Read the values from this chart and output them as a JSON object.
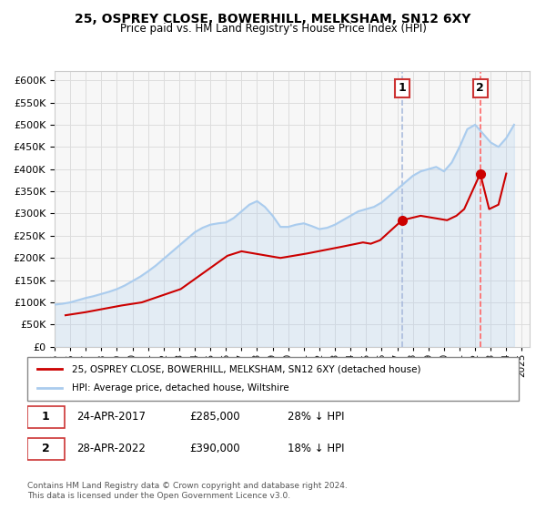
{
  "title": "25, OSPREY CLOSE, BOWERHILL, MELKSHAM, SN12 6XY",
  "subtitle": "Price paid vs. HM Land Registry's House Price Index (HPI)",
  "legend_label_red": "25, OSPREY CLOSE, BOWERHILL, MELKSHAM, SN12 6XY (detached house)",
  "legend_label_blue": "HPI: Average price, detached house, Wiltshire",
  "annotation1_label": "1",
  "annotation1_date": "24-APR-2017",
  "annotation1_price": "£285,000",
  "annotation1_hpi": "28% ↓ HPI",
  "annotation1_year": 2017.31,
  "annotation1_value": 285000,
  "annotation2_label": "2",
  "annotation2_date": "28-APR-2022",
  "annotation2_price": "£390,000",
  "annotation2_hpi": "18% ↓ HPI",
  "annotation2_year": 2022.33,
  "annotation2_value": 390000,
  "vline1_year": 2017.31,
  "vline2_year": 2022.33,
  "footer1": "Contains HM Land Registry data © Crown copyright and database right 2024.",
  "footer2": "This data is licensed under the Open Government Licence v3.0.",
  "ylim": [
    0,
    620000
  ],
  "xlim_min": 1995.0,
  "xlim_max": 2025.5,
  "red_color": "#cc0000",
  "blue_color": "#aaccee",
  "vline_blue_color": "#aabbdd",
  "vline_red_color": "#ff6666",
  "grid_color": "#dddddd",
  "bg_color": "#f7f7f7",
  "hpi_years": [
    1995,
    1995.5,
    1996,
    1996.5,
    1997,
    1997.5,
    1998,
    1998.5,
    1999,
    1999.5,
    2000,
    2000.5,
    2001,
    2001.5,
    2002,
    2002.5,
    2003,
    2003.5,
    2004,
    2004.5,
    2005,
    2005.5,
    2006,
    2006.5,
    2007,
    2007.5,
    2008,
    2008.5,
    2009,
    2009.5,
    2010,
    2010.5,
    2011,
    2011.5,
    2012,
    2012.5,
    2013,
    2013.5,
    2014,
    2014.5,
    2015,
    2015.5,
    2016,
    2016.5,
    2017,
    2017.5,
    2018,
    2018.5,
    2019,
    2019.5,
    2020,
    2020.5,
    2021,
    2021.5,
    2022,
    2022.5,
    2023,
    2023.5,
    2024,
    2024.5
  ],
  "hpi_values": [
    95000,
    97000,
    100000,
    105000,
    110000,
    114000,
    119000,
    124000,
    130000,
    138000,
    148000,
    158000,
    170000,
    183000,
    198000,
    213000,
    228000,
    243000,
    258000,
    268000,
    275000,
    278000,
    280000,
    290000,
    305000,
    320000,
    328000,
    315000,
    295000,
    270000,
    270000,
    275000,
    278000,
    272000,
    265000,
    268000,
    275000,
    285000,
    295000,
    305000,
    310000,
    315000,
    325000,
    340000,
    355000,
    370000,
    385000,
    395000,
    400000,
    405000,
    395000,
    415000,
    450000,
    490000,
    500000,
    480000,
    460000,
    450000,
    470000,
    500000
  ],
  "price_years": [
    1995.7,
    1997.0,
    1999.3,
    2000.6,
    2003.1,
    2006.1,
    2007.0,
    2009.5,
    2011.2,
    2013.4,
    2014.8,
    2015.3,
    2015.9,
    2017.31,
    2018.5,
    2020.2,
    2020.8,
    2021.3,
    2022.33,
    2022.9,
    2023.5,
    2024.0
  ],
  "price_values": [
    71000,
    78000,
    93000,
    100000,
    130000,
    205000,
    215000,
    200000,
    210000,
    225000,
    235000,
    232000,
    240000,
    285000,
    295000,
    285000,
    295000,
    310000,
    390000,
    310000,
    320000,
    390000
  ]
}
